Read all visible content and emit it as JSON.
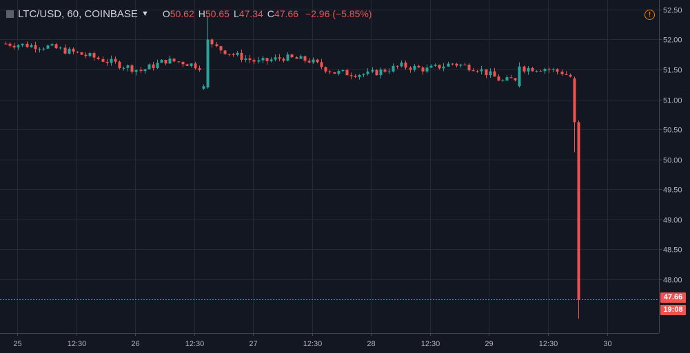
{
  "header": {
    "symbol": "LTC/USD, 60, COINBASE",
    "open_key": "O",
    "open": "50.62",
    "high_key": "H",
    "high": "50.65",
    "low_key": "L",
    "low": "47.34",
    "close_key": "C",
    "close": "47.66",
    "change": "−2.96 (−5.85%)"
  },
  "price_tag": {
    "price": "47.66",
    "countdown": "19:08"
  },
  "colors": {
    "background": "#131722",
    "up": "#26a69a",
    "down": "#ef5350",
    "grid": "#262a35",
    "text": "#b2b5be"
  },
  "chart_data": {
    "type": "candlestick",
    "ylim": [
      47.1,
      52.66
    ],
    "y_ticks": [
      "52.50",
      "52.00",
      "51.50",
      "51.00",
      "50.50",
      "50.00",
      "49.50",
      "49.00",
      "48.50",
      "48.00"
    ],
    "x_ticks": [
      "25",
      "12:30",
      "26",
      "12:30",
      "27",
      "12:30",
      "28",
      "12:30",
      "29",
      "12:30",
      "30"
    ],
    "grid": true,
    "last_price_line": 47.66,
    "anchors": [
      {
        "t": 0,
        "p": 51.93
      },
      {
        "t": 10,
        "p": 51.88
      },
      {
        "t": 20,
        "p": 51.72
      },
      {
        "t": 32,
        "p": 51.48
      },
      {
        "t": 38,
        "p": 51.65
      },
      {
        "t": 42,
        "p": 51.62
      },
      {
        "t": 46,
        "p": 51.55
      },
      {
        "t": 47,
        "p": 51.25
      },
      {
        "t": 48,
        "p": 51.92
      },
      {
        "t": 54,
        "p": 51.75
      },
      {
        "t": 60,
        "p": 51.62
      },
      {
        "t": 66,
        "p": 51.7
      },
      {
        "t": 72,
        "p": 51.65
      },
      {
        "t": 78,
        "p": 51.45
      },
      {
        "t": 86,
        "p": 51.42
      },
      {
        "t": 94,
        "p": 51.56
      },
      {
        "t": 100,
        "p": 51.5
      },
      {
        "t": 106,
        "p": 51.6
      },
      {
        "t": 112,
        "p": 51.52
      },
      {
        "t": 118,
        "p": 51.3
      },
      {
        "t": 121,
        "p": 51.35
      },
      {
        "t": 122,
        "p": 51.52
      },
      {
        "t": 128,
        "p": 51.52
      },
      {
        "t": 132,
        "p": 51.45
      },
      {
        "t": 134,
        "p": 51.38
      },
      {
        "t": 135,
        "p": 50.65
      },
      {
        "t": 136,
        "p": 47.66
      }
    ],
    "big_candles": [
      {
        "t": 47,
        "open": 51.18,
        "high": 51.25,
        "low": 51.16,
        "close": 51.22
      },
      {
        "t": 48,
        "open": 51.2,
        "high": 52.4,
        "low": 51.18,
        "close": 52.0
      },
      {
        "t": 122,
        "open": 51.22,
        "high": 51.62,
        "low": 51.2,
        "close": 51.55
      },
      {
        "t": 135,
        "open": 51.35,
        "high": 51.38,
        "low": 50.12,
        "close": 50.62
      },
      {
        "t": 136,
        "open": 50.62,
        "high": 50.65,
        "low": 47.34,
        "close": 47.66
      }
    ]
  }
}
